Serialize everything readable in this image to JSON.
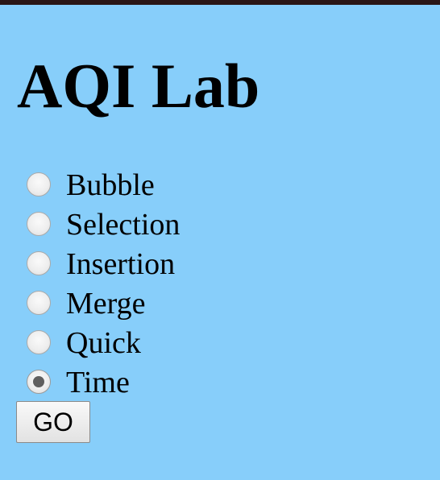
{
  "page": {
    "title": "AQI Lab"
  },
  "form": {
    "options": [
      {
        "label": "Bubble",
        "checked": false
      },
      {
        "label": "Selection",
        "checked": false
      },
      {
        "label": "Insertion",
        "checked": false
      },
      {
        "label": "Merge",
        "checked": false
      },
      {
        "label": "Quick",
        "checked": false
      },
      {
        "label": "Time",
        "checked": true
      }
    ],
    "selected": "Time",
    "submit_label": "GO"
  },
  "colors": {
    "background": "#87cefa",
    "top_strip": "#2a1616",
    "text": "#000000"
  }
}
